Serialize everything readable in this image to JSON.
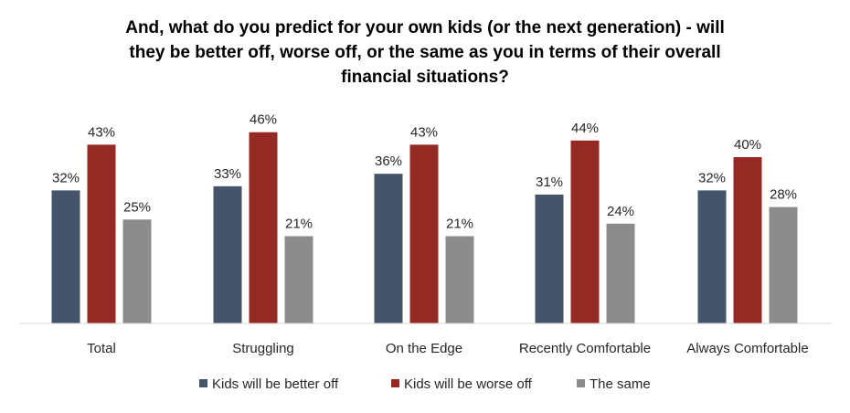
{
  "chart_data": {
    "type": "bar",
    "title_lines": [
      "And, what do you predict for your own kids (or the next generation) - will",
      "they be better off, worse off, or the same as you in terms of their overall",
      "financial situations?"
    ],
    "categories": [
      "Total",
      "Struggling",
      "On the Edge",
      "Recently Comfortable",
      "Always Comfortable"
    ],
    "series": [
      {
        "name": "Kids will be better off",
        "values": [
          32,
          33,
          36,
          31,
          32
        ],
        "labels": [
          "32%",
          "33%",
          "36%",
          "31%",
          "32%"
        ],
        "color": "#44546a"
      },
      {
        "name": "Kids will be worse off",
        "values": [
          43,
          46,
          43,
          44,
          40
        ],
        "labels": [
          "43%",
          "46%",
          "43%",
          "44%",
          "40%"
        ],
        "color": "#952a25"
      },
      {
        "name": "The same",
        "values": [
          25,
          21,
          21,
          24,
          28
        ],
        "labels": [
          "25%",
          "21%",
          "21%",
          "24%",
          "28%"
        ],
        "color": "#8c8c8c"
      }
    ],
    "ylim": [
      0,
      50
    ],
    "grid": false,
    "legend_position": "bottom"
  }
}
